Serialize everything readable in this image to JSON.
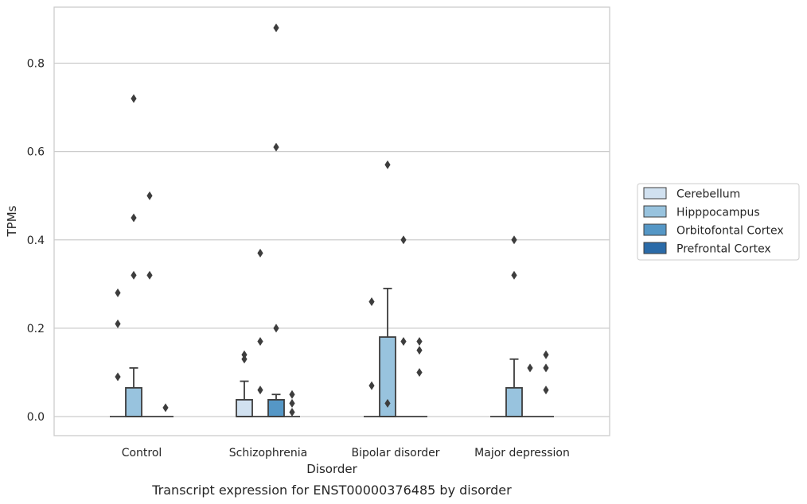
{
  "caption": "Transcript expression for ENST00000376485 by disorder",
  "chart_data": {
    "type": "box",
    "title": "",
    "xlabel": "Disorder",
    "ylabel": "TPMs",
    "ylim": [
      -0.042,
      0.93
    ],
    "yticks": [
      0.0,
      0.2,
      0.4,
      0.6,
      0.8
    ],
    "ytick_labels": [
      "0.0",
      "0.2",
      "0.4",
      "0.6",
      "0.8"
    ],
    "grid": "horizontal",
    "legend_position": "right",
    "categories": [
      "Control",
      "Schizophrenia",
      "Bipolar disorder",
      "Major depression"
    ],
    "series": [
      {
        "name": "Cerebellum",
        "color": "#d1e1f0",
        "boxes": [
          {
            "category": "Control",
            "q1": 0,
            "median": 0,
            "q3": 0,
            "whisker_low": 0,
            "whisker_high": 0,
            "outliers": [
              0.28,
              0.21,
              0.09
            ]
          },
          {
            "category": "Schizophrenia",
            "q1": 0,
            "median": 0,
            "q3": 0.038,
            "whisker_low": 0,
            "whisker_high": 0.08,
            "outliers": [
              0.14,
              0.13
            ]
          },
          {
            "category": "Bipolar disorder",
            "q1": 0,
            "median": 0,
            "q3": 0,
            "whisker_low": 0,
            "whisker_high": 0,
            "outliers": [
              0.26,
              0.07
            ]
          },
          {
            "category": "Major depression",
            "q1": 0,
            "median": 0,
            "q3": 0,
            "whisker_low": 0,
            "whisker_high": 0,
            "outliers": []
          }
        ]
      },
      {
        "name": "Hipppocampus",
        "color": "#98c3de",
        "boxes": [
          {
            "category": "Control",
            "q1": 0,
            "median": 0,
            "q3": 0.065,
            "whisker_low": 0,
            "whisker_high": 0.11,
            "outliers": [
              0.72,
              0.45,
              0.32
            ]
          },
          {
            "category": "Schizophrenia",
            "q1": 0,
            "median": 0,
            "q3": 0,
            "whisker_low": 0,
            "whisker_high": 0,
            "outliers": [
              0.37,
              0.17,
              0.06
            ]
          },
          {
            "category": "Bipolar disorder",
            "q1": 0,
            "median": 0,
            "q3": 0.18,
            "whisker_low": 0,
            "whisker_high": 0.29,
            "outliers": [
              0.57,
              0.03
            ]
          },
          {
            "category": "Major depression",
            "q1": 0,
            "median": 0,
            "q3": 0.065,
            "whisker_low": 0,
            "whisker_high": 0.13,
            "outliers": [
              0.4,
              0.32
            ]
          }
        ]
      },
      {
        "name": "Orbitofontal Cortex",
        "color": "#5597c6",
        "boxes": [
          {
            "category": "Control",
            "q1": 0,
            "median": 0,
            "q3": 0,
            "whisker_low": 0,
            "whisker_high": 0,
            "outliers": [
              0.5,
              0.32
            ]
          },
          {
            "category": "Schizophrenia",
            "q1": 0,
            "median": 0,
            "q3": 0.038,
            "whisker_low": 0,
            "whisker_high": 0.05,
            "outliers": [
              0.88,
              0.61,
              0.2
            ]
          },
          {
            "category": "Bipolar disorder",
            "q1": 0,
            "median": 0,
            "q3": 0,
            "whisker_low": 0,
            "whisker_high": 0,
            "outliers": [
              0.4,
              0.17
            ]
          },
          {
            "category": "Major depression",
            "q1": 0,
            "median": 0,
            "q3": 0,
            "whisker_low": 0,
            "whisker_high": 0,
            "outliers": [
              0.11
            ]
          }
        ]
      },
      {
        "name": "Prefrontal Cortex",
        "color": "#2b6ba8",
        "boxes": [
          {
            "category": "Control",
            "q1": 0,
            "median": 0,
            "q3": 0,
            "whisker_low": 0,
            "whisker_high": 0,
            "outliers": [
              0.02
            ]
          },
          {
            "category": "Schizophrenia",
            "q1": 0,
            "median": 0,
            "q3": 0,
            "whisker_low": 0,
            "whisker_high": 0,
            "outliers": [
              0.05,
              0.03,
              0.01
            ]
          },
          {
            "category": "Bipolar disorder",
            "q1": 0,
            "median": 0,
            "q3": 0,
            "whisker_low": 0,
            "whisker_high": 0,
            "outliers": [
              0.17,
              0.15,
              0.1
            ]
          },
          {
            "category": "Major depression",
            "q1": 0,
            "median": 0,
            "q3": 0,
            "whisker_low": 0,
            "whisker_high": 0,
            "outliers": [
              0.14,
              0.11,
              0.06
            ]
          }
        ]
      }
    ]
  }
}
